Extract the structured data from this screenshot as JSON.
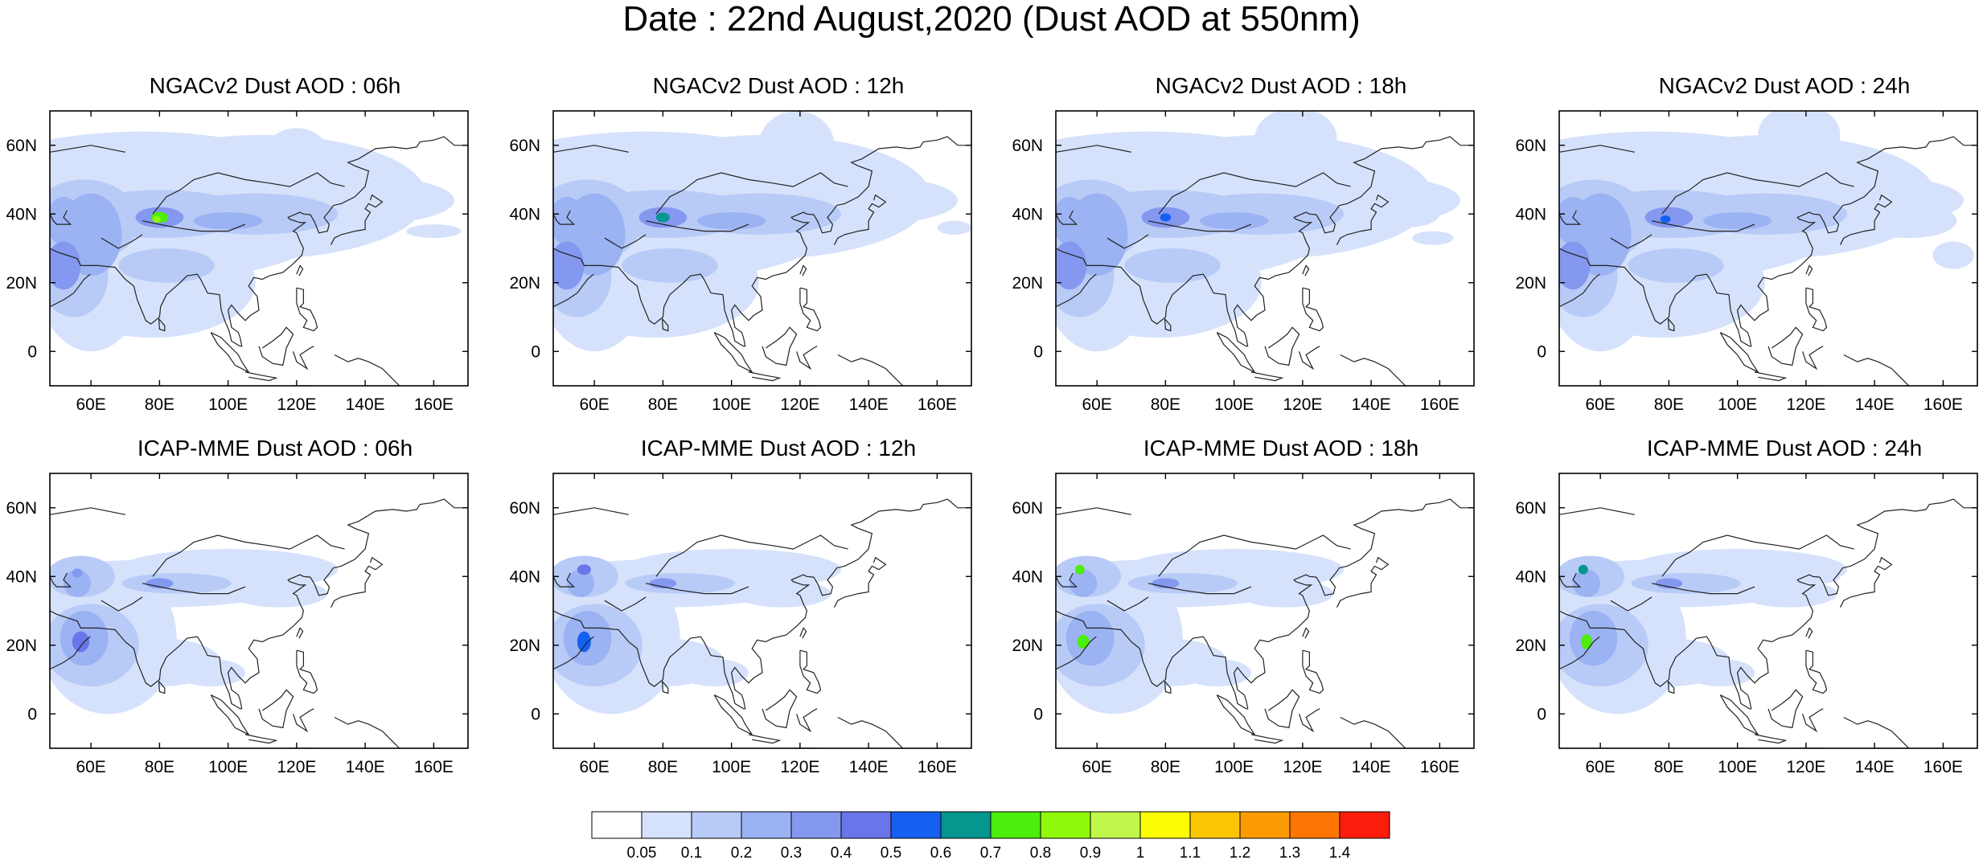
{
  "figure": {
    "title": "Date : 22nd August,2020 (Dust AOD at 550nm)"
  },
  "map": {
    "x_ticks": [
      "60E",
      "80E",
      "100E",
      "120E",
      "140E",
      "160E"
    ],
    "x_tick_values": [
      60,
      80,
      100,
      120,
      140,
      160
    ],
    "y_ticks": [
      "60N",
      "40N",
      "20N",
      "0"
    ],
    "y_tick_values": [
      60,
      40,
      20,
      0
    ],
    "lon_range": [
      48,
      170
    ],
    "lat_range": [
      -10,
      70
    ]
  },
  "panels": [
    {
      "id": "ngac-06",
      "title": "NGACv2 Dust AOD : 06h",
      "model": "NGACv2",
      "hour": "06h"
    },
    {
      "id": "ngac-12",
      "title": "NGACv2 Dust AOD : 12h",
      "model": "NGACv2",
      "hour": "12h"
    },
    {
      "id": "ngac-18",
      "title": "NGACv2 Dust AOD : 18h",
      "model": "NGACv2",
      "hour": "18h"
    },
    {
      "id": "ngac-24",
      "title": "NGACv2 Dust AOD : 24h",
      "model": "NGACv2",
      "hour": "24h"
    },
    {
      "id": "icap-06",
      "title": "ICAP-MME Dust AOD : 06h",
      "model": "ICAP-MME",
      "hour": "06h"
    },
    {
      "id": "icap-12",
      "title": "ICAP-MME Dust AOD : 12h",
      "model": "ICAP-MME",
      "hour": "12h"
    },
    {
      "id": "icap-18",
      "title": "ICAP-MME Dust AOD : 18h",
      "model": "ICAP-MME",
      "hour": "18h"
    },
    {
      "id": "icap-24",
      "title": "ICAP-MME Dust AOD : 24h",
      "model": "ICAP-MME",
      "hour": "24h"
    }
  ],
  "colorbar": {
    "labels": [
      "0.05",
      "0.1",
      "0.2",
      "0.3",
      "0.4",
      "0.5",
      "0.6",
      "0.7",
      "0.8",
      "0.9",
      "1",
      "1.1",
      "1.2",
      "1.3",
      "1.4"
    ],
    "colors": [
      "#ffffff",
      "#d6e2fb",
      "#b8cbf7",
      "#9bb2f3",
      "#8598f0",
      "#6a75ea",
      "#1560f0",
      "#04968f",
      "#4ded0c",
      "#8ff80b",
      "#c1f74a",
      "#fcfc04",
      "#fcc504",
      "#fc9b04",
      "#fc7404",
      "#fc1c0c"
    ]
  }
}
